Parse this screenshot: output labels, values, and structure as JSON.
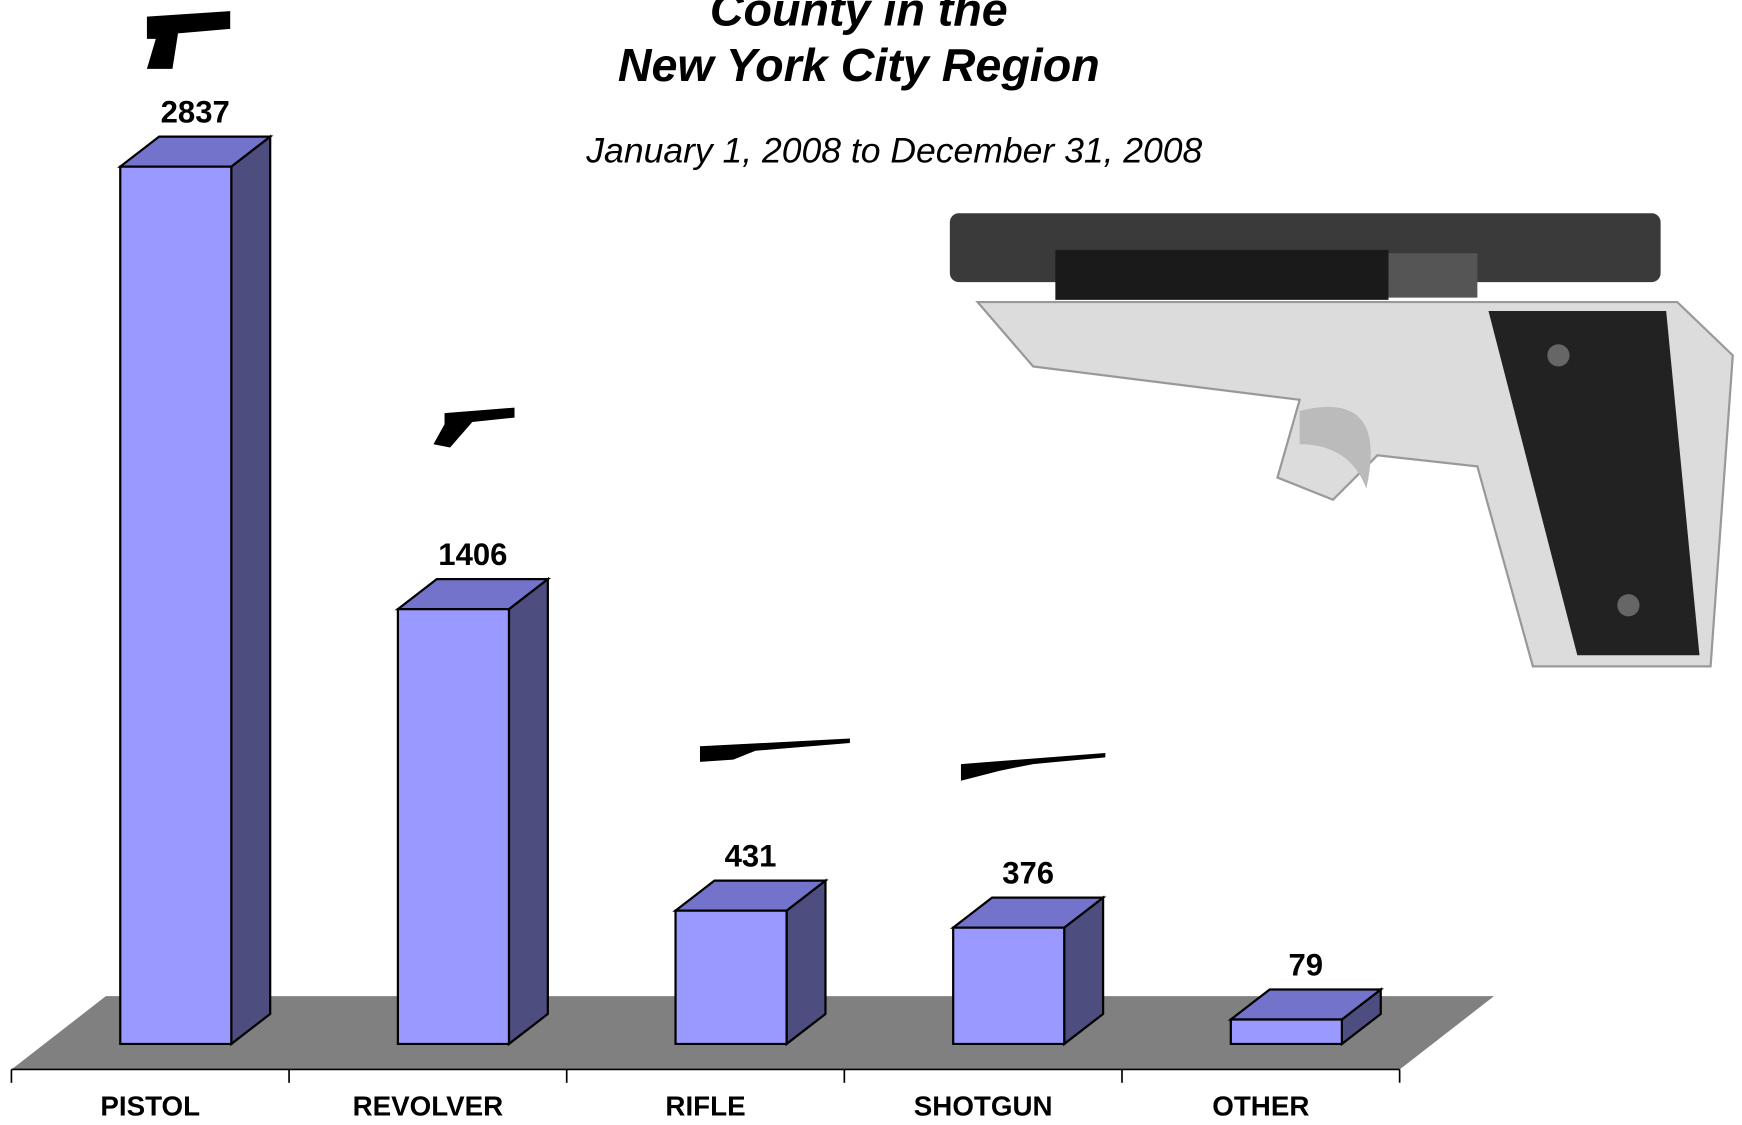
{
  "chart_data": {
    "type": "bar3d",
    "title_lines": [
      "County in the",
      "New York City Region"
    ],
    "subtitle": "January 1, 2008 to December 31, 2008",
    "categories": [
      "PISTOL",
      "REVOLVER",
      "RIFLE",
      "SHOTGUN",
      "OTHER"
    ],
    "values": [
      2837,
      1406,
      431,
      376,
      79
    ],
    "color": "#9999ff"
  }
}
